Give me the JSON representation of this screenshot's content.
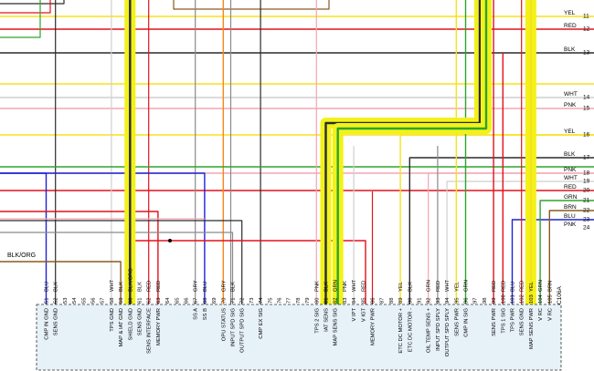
{
  "colors": {
    "BLK": "#2b2b2b",
    "BLU": "#1e22d8",
    "RED": "#e0131b",
    "YEL": "#f7e21a",
    "WHT": "#cfcfcf",
    "PNK": "#f2a7b3",
    "GRN": "#2ea42e",
    "BRN": "#8a5a1d",
    "GRY": "#8a8a8a",
    "ORG": "#f28a1a",
    "PANEL": "#e6f1f8",
    "HIGHLIGHT": "#f2f21a"
  },
  "connector": {
    "id": "C106A",
    "pins": [
      {
        "num": "51",
        "color": "BLU",
        "label": "CMP IN GND"
      },
      {
        "num": "52",
        "color": "BLK",
        "label": "SENS GND"
      },
      {
        "num": "53",
        "color": "",
        "label": ""
      },
      {
        "num": "54",
        "color": "",
        "label": ""
      },
      {
        "num": "55",
        "color": "",
        "label": ""
      },
      {
        "num": "56",
        "color": "",
        "label": ""
      },
      {
        "num": "57",
        "color": "",
        "label": ""
      },
      {
        "num": "58",
        "color": "WHT",
        "label": "TPS GND"
      },
      {
        "num": "59",
        "color": "BLK",
        "label": "MAP & IAT GND"
      },
      {
        "num": "60",
        "color": "BLK/ORG",
        "label": "SHIELD GND"
      },
      {
        "num": "61",
        "color": "BLK",
        "label": "SENS GND"
      },
      {
        "num": "62",
        "color": "RED",
        "label": "SENS INTERFACE"
      },
      {
        "num": "63",
        "color": "RED",
        "label": "MEMORY PWR"
      },
      {
        "num": "64",
        "color": "",
        "label": ""
      },
      {
        "num": "65",
        "color": "",
        "label": ""
      },
      {
        "num": "66",
        "color": "",
        "label": ""
      },
      {
        "num": "67",
        "color": "GRY",
        "label": "SS A"
      },
      {
        "num": "68",
        "color": "BLU",
        "label": "SS B"
      },
      {
        "num": "69",
        "color": "",
        "label": ""
      },
      {
        "num": "70",
        "color": "GRY",
        "label": "OPU STATUS"
      },
      {
        "num": "71",
        "color": "BLK",
        "label": "INPUT SPD SIG"
      },
      {
        "num": "72",
        "color": "",
        "label": "OUTPUT SPD SIG"
      },
      {
        "num": "73",
        "color": "",
        "label": ""
      },
      {
        "num": "74",
        "color": "",
        "label": "CMP EX SIG"
      },
      {
        "num": "75",
        "color": "",
        "label": ""
      },
      {
        "num": "76",
        "color": "",
        "label": ""
      },
      {
        "num": "77",
        "color": "",
        "label": ""
      },
      {
        "num": "78",
        "color": "",
        "label": ""
      },
      {
        "num": "79",
        "color": "",
        "label": ""
      },
      {
        "num": "80",
        "color": "PNK",
        "label": "TPS 2 SIG"
      },
      {
        "num": "81",
        "color": "BLK",
        "label": "IAT SENS"
      },
      {
        "num": "82",
        "color": "GRN",
        "label": "MAP SENS SIG"
      },
      {
        "num": "83",
        "color": "PNK",
        "label": ""
      },
      {
        "num": "84",
        "color": "WHT",
        "label": "V IPT"
      },
      {
        "num": "85",
        "color": "RED",
        "label": "V IGT"
      },
      {
        "num": "86",
        "color": "",
        "label": "MEMORY PWR"
      },
      {
        "num": "87",
        "color": "",
        "label": ""
      },
      {
        "num": "88",
        "color": "",
        "label": ""
      },
      {
        "num": "89",
        "color": "YEL",
        "label": "ETC DC MOTOR +"
      },
      {
        "num": "90",
        "color": "BLK",
        "label": "ETC DC MOTOR -"
      },
      {
        "num": "91",
        "color": "",
        "label": ""
      },
      {
        "num": "92",
        "color": "GRN",
        "label": "OIL TEMP SENS +"
      },
      {
        "num": "93",
        "color": "RED",
        "label": "INPUT SPD SPLY"
      },
      {
        "num": "94",
        "color": "WHT",
        "label": "OUTPUT SPD SPLY"
      },
      {
        "num": "95",
        "color": "YEL",
        "label": "SENS PWR"
      },
      {
        "num": "96",
        "color": "GRN",
        "label": "CMP IN SIG"
      },
      {
        "num": "97",
        "color": "",
        "label": ""
      },
      {
        "num": "98",
        "color": "",
        "label": ""
      },
      {
        "num": "99",
        "color": "RED",
        "label": "SENS PWR"
      },
      {
        "num": "100",
        "color": "RED",
        "label": "TPS 1 SIG"
      },
      {
        "num": "101",
        "color": "BLU",
        "label": "TPS PWR"
      },
      {
        "num": "102",
        "color": "RED",
        "label": "SENS GND"
      },
      {
        "num": "103",
        "color": "YEL",
        "label": "MAP SENS PWR"
      },
      {
        "num": "104",
        "color": "GRN",
        "label": "V RC"
      },
      {
        "num": "105",
        "color": "BRN",
        "label": "V RC"
      }
    ]
  },
  "right_wires": [
    {
      "num": "11",
      "color": "YEL",
      "label": "YEL"
    },
    {
      "num": "12",
      "color": "RED",
      "label": "RED"
    },
    {
      "num": "13",
      "color": "BLK",
      "label": "BLK"
    },
    {
      "num": "14",
      "color": "WHT",
      "label": "WHT"
    },
    {
      "num": "15",
      "color": "PNK",
      "label": "PNK"
    },
    {
      "num": "16",
      "color": "YEL",
      "label": "YEL"
    },
    {
      "num": "17",
      "color": "BLK",
      "label": "BLK"
    },
    {
      "num": "18",
      "color": "PNK",
      "label": "PNK"
    },
    {
      "num": "19",
      "color": "WHT",
      "label": "WHT"
    },
    {
      "num": "20",
      "color": "RED",
      "label": "RED"
    },
    {
      "num": "21",
      "color": "GRN",
      "label": "GRN"
    },
    {
      "num": "22",
      "color": "BRN",
      "label": "BRN"
    },
    {
      "num": "23",
      "color": "BLU",
      "label": "BLU"
    },
    {
      "num": "24",
      "color": "PNK",
      "label": "PNK"
    }
  ],
  "left_label": "BLK/ORG"
}
